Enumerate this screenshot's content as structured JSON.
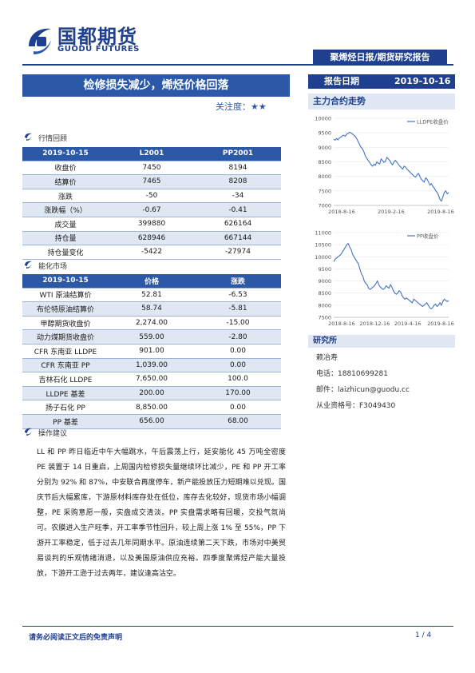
{
  "header": {
    "logo_cn": "国都期货",
    "logo_en": "GUODU FUTURES",
    "report_type": "聚烯烃日报/期货研究报告",
    "title": "检修损失减少，烯烃价格回落",
    "focus_label": "关注度：",
    "focus_stars": "★★",
    "date_label": "报告日期",
    "date_value": "2019-10-16"
  },
  "market_review": {
    "label": "行情回顾",
    "columns": [
      "2019-10-15",
      "L2001",
      "PP2001"
    ],
    "rows": [
      [
        "收盘价",
        "7450",
        "8194"
      ],
      [
        "结算价",
        "7465",
        "8208"
      ],
      [
        "涨跌",
        "-50",
        "-34"
      ],
      [
        "涨跌幅（%）",
        "-0.67",
        "-0.41"
      ],
      [
        "成交量",
        "399880",
        "626164"
      ],
      [
        "持仓量",
        "628946",
        "667144"
      ],
      [
        "持仓量变化",
        "-5422",
        "-27974"
      ]
    ]
  },
  "energy_market": {
    "label": "能化市场",
    "columns": [
      "2019-10-15",
      "价格",
      "涨跌"
    ],
    "rows": [
      [
        "WTI 原油结算价",
        "52.81",
        "-6.53"
      ],
      [
        "布伦特原油结算价",
        "58.74",
        "-5.81"
      ],
      [
        "甲醇期货收盘价",
        "2,274.00",
        "-15.00"
      ],
      [
        "动力煤期货收盘价",
        "559.00",
        "-2.80"
      ],
      [
        "CFR 东南亚 LLDPE",
        "901.00",
        "0.00"
      ],
      [
        "CFR 东南亚 PP",
        "1,039.00",
        "0.00"
      ],
      [
        "吉林石化 LLDPE",
        "7,650.00",
        "100.0"
      ],
      [
        "LLDPE 基差",
        "200.00",
        "170.00"
      ],
      [
        "扬子石化 PP",
        "8,850.00",
        "0.00"
      ],
      [
        "PP 基差",
        "656.00",
        "68.00"
      ]
    ]
  },
  "advice": {
    "label": "操作建议",
    "text": "LL 和 PP 昨日临近中午大幅跳水，午后震荡上行，延安能化 45 万吨全密度 PE 装置于 14 日重启，上周国内检修损失量继续环比减少，PE 和 PP 开工率分别为 92% 和 87%，中安联合再度停车，新产能投放压力短期难以兑现。国庆节后大幅累库，下游原材料库存处在低位，库存去化较好，现货市场小幅调整，PE 采购意愿一般，实盘成交清淡。PP 实盘需求略有回暖，交投气氛尚可。农膜进入生产旺季，开工率季节性回升，较上周上涨 1% 至 55%，PP 下游开工率稳定，低于过去几年同期水平。原油连续第二天下跌，市场对中美贸易谈判的乐观情绪消退，以及美国原油供应充裕。四季度聚烯烃产能大量投放，下游开工逊于过去两年，建议逢高沽空。"
  },
  "main_contract": {
    "label": "主力合约走势"
  },
  "chart_data": [
    {
      "type": "line",
      "title": "",
      "series": [
        {
          "name": "LLDPE收盘价",
          "color": "#4472c4",
          "values": [
            9280,
            9250,
            9300,
            9260,
            9330,
            9350,
            9400,
            9420,
            9380,
            9450,
            9480,
            9520,
            9500,
            9460,
            9420,
            9380,
            9300,
            9200,
            9100,
            9000,
            8950,
            8850,
            8700,
            8620,
            8550,
            8480,
            8400,
            8350,
            8420,
            8380,
            8500,
            8450,
            8430,
            8600,
            8550,
            8480,
            8520,
            8650,
            8600,
            8550,
            8450,
            8400,
            8500,
            8550,
            8480,
            8420,
            8350,
            8300,
            8250,
            8350,
            8320,
            8250,
            8200,
            8150,
            8100,
            8050,
            8000,
            7980,
            8050,
            8100,
            8000,
            7900,
            7850,
            7800,
            7950,
            7900,
            7800,
            7700,
            7750,
            7650,
            7600,
            7500,
            7450,
            7350,
            7200,
            7150,
            7300,
            7450,
            7500,
            7400,
            7450
          ]
        }
      ],
      "x_ticks": [
        "2018-8-16",
        "2019-2-16",
        "2019-8-16"
      ],
      "ylim": [
        7000,
        10000
      ],
      "y_ticks": [
        7000,
        7500,
        8000,
        8500,
        9000,
        9500,
        10000
      ],
      "legend": "top-right"
    },
    {
      "type": "line",
      "title": "",
      "series": [
        {
          "name": "PP收盘价",
          "color": "#4472c4",
          "values": [
            9800,
            9900,
            9950,
            10000,
            10050,
            10100,
            10200,
            10300,
            10400,
            10500,
            10550,
            10400,
            10300,
            10100,
            10000,
            9900,
            9800,
            9700,
            9500,
            9300,
            9200,
            9000,
            8900,
            8850,
            8700,
            8650,
            8700,
            8750,
            8800,
            8900,
            9000,
            8850,
            8750,
            8700,
            8650,
            8700,
            8800,
            8750,
            8700,
            8850,
            8750,
            8600,
            8500,
            8450,
            8500,
            8600,
            8550,
            8400,
            8300,
            8250,
            8300,
            8250,
            8200,
            8150,
            8100,
            8250,
            8200,
            8150,
            8100,
            8050,
            8000,
            7950,
            8000,
            8050,
            8100,
            8000,
            7900,
            7850,
            7900,
            8000,
            8050,
            7950,
            8000,
            8100,
            8000,
            8150,
            8250,
            8200,
            8150,
            8200
          ]
        }
      ],
      "x_ticks": [
        "2018-8-16",
        "2018-12-16",
        "2019-4-16",
        "2019-8-16"
      ],
      "ylim": [
        7500,
        11000
      ],
      "y_ticks": [
        7500,
        8000,
        8500,
        9000,
        9500,
        10000,
        10500,
        11000
      ],
      "legend": "top-right"
    }
  ],
  "researcher": {
    "label": "研究所",
    "name": "赖冶寿",
    "phone": "电话：18810699281",
    "email": "邮件：laizhicun@guodu.cc",
    "license": "从业资格号：F3049430"
  },
  "footer": {
    "disclaimer": "请务必阅读正文后的免责声明",
    "page": "1 / 4"
  }
}
